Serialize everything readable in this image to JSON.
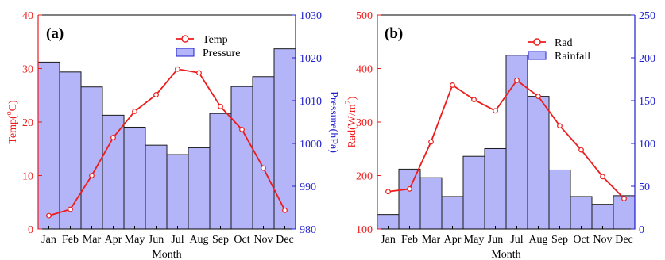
{
  "chart_data": [
    {
      "type": "bar+line",
      "panel_label": "(a)",
      "xlabel": "Month",
      "categories": [
        "Jan",
        "Feb",
        "Mar",
        "Apr",
        "May",
        "Jun",
        "Jul",
        "Aug",
        "Sep",
        "Oct",
        "Nov",
        "Dec"
      ],
      "left_axis": {
        "label": "Temp(°C)",
        "label_main": "Temp(",
        "label_sup": "o",
        "label_end": "C)",
        "ylim": [
          0,
          40
        ],
        "ticks": [
          "0",
          "10",
          "20",
          "30",
          "40"
        ],
        "tick_values": [
          0,
          10,
          20,
          30,
          40
        ],
        "color": "#ee1c1c"
      },
      "right_axis": {
        "label": "Pressure(hPa)",
        "ylim": [
          980,
          1030
        ],
        "ticks": [
          "980",
          "990",
          "1000",
          "1010",
          "1020",
          "1030"
        ],
        "tick_values": [
          980,
          990,
          1000,
          1010,
          1020,
          1030
        ],
        "color": "#2020d0"
      },
      "series": [
        {
          "name": "Temp",
          "kind": "line",
          "axis": "left",
          "color": "#ee1c1c",
          "values": [
            2.5,
            3.7,
            10.0,
            17.1,
            22.0,
            25.1,
            29.9,
            29.2,
            22.9,
            18.6,
            11.4,
            3.5
          ]
        },
        {
          "name": "Pressure",
          "kind": "bar",
          "axis": "right",
          "color": "#b4b4f8",
          "values": [
            1019.0,
            1016.7,
            1013.2,
            1006.6,
            1003.8,
            999.6,
            997.4,
            999.0,
            1007.0,
            1013.3,
            1015.6,
            1022.1
          ]
        }
      ],
      "legend": {
        "position": "top-center",
        "entries": [
          "Temp",
          "Pressure"
        ]
      },
      "grid": false
    },
    {
      "type": "bar+line",
      "panel_label": "(b)",
      "xlabel": "Month",
      "categories": [
        "Jan",
        "Feb",
        "Mar",
        "Apr",
        "May",
        "Jun",
        "Jul",
        "Aug",
        "Sep",
        "Oct",
        "Nov",
        "Dec"
      ],
      "left_axis": {
        "label": "Rad(W/m²)",
        "label_main": "Rad(W/m",
        "label_sup": "2",
        "label_end": ")",
        "ylim": [
          100,
          500
        ],
        "ticks": [
          "100",
          "200",
          "300",
          "400",
          "500"
        ],
        "tick_values": [
          100,
          200,
          300,
          400,
          500
        ],
        "color": "#ee1c1c"
      },
      "right_axis": {
        "label": "Rainfall(mm)",
        "ylim": [
          0,
          250
        ],
        "ticks": [
          "0",
          "50",
          "100",
          "150",
          "200",
          "250"
        ],
        "tick_values": [
          0,
          50,
          100,
          150,
          200,
          250
        ],
        "color": "#2020d0"
      },
      "series": [
        {
          "name": "Rad",
          "kind": "line",
          "axis": "left",
          "color": "#ee1c1c",
          "values": [
            170,
            175,
            263,
            369,
            342,
            321,
            378,
            348,
            293,
            248,
            198,
            157
          ]
        },
        {
          "name": "Rainfall",
          "kind": "bar",
          "axis": "right",
          "color": "#b4b4f8",
          "values": [
            17,
            70,
            60,
            38,
            85,
            94,
            203,
            155,
            69,
            38,
            29,
            39
          ]
        }
      ],
      "legend": {
        "position": "top-right",
        "entries": [
          "Rad",
          "Rainfall"
        ]
      },
      "grid": false
    }
  ]
}
